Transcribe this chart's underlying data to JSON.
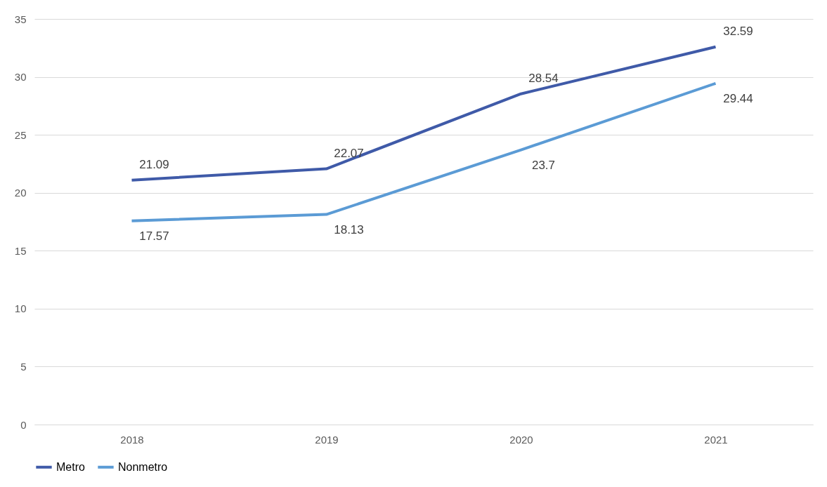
{
  "chart_data": {
    "type": "line",
    "categories": [
      "2018",
      "2019",
      "2020",
      "2021"
    ],
    "series": [
      {
        "name": "Metro",
        "color": "#3f5aa8",
        "values": [
          21.09,
          22.07,
          28.54,
          32.59
        ]
      },
      {
        "name": "Nonmetro",
        "color": "#5b9bd5",
        "values": [
          17.57,
          18.13,
          23.7,
          29.44
        ]
      }
    ],
    "ylim": [
      0,
      35
    ],
    "yticks": [
      0,
      5,
      10,
      15,
      20,
      25,
      30,
      35
    ],
    "grid": "y",
    "legend": "bottom",
    "data_labels": true,
    "marker": "none",
    "line_style": "solid"
  }
}
